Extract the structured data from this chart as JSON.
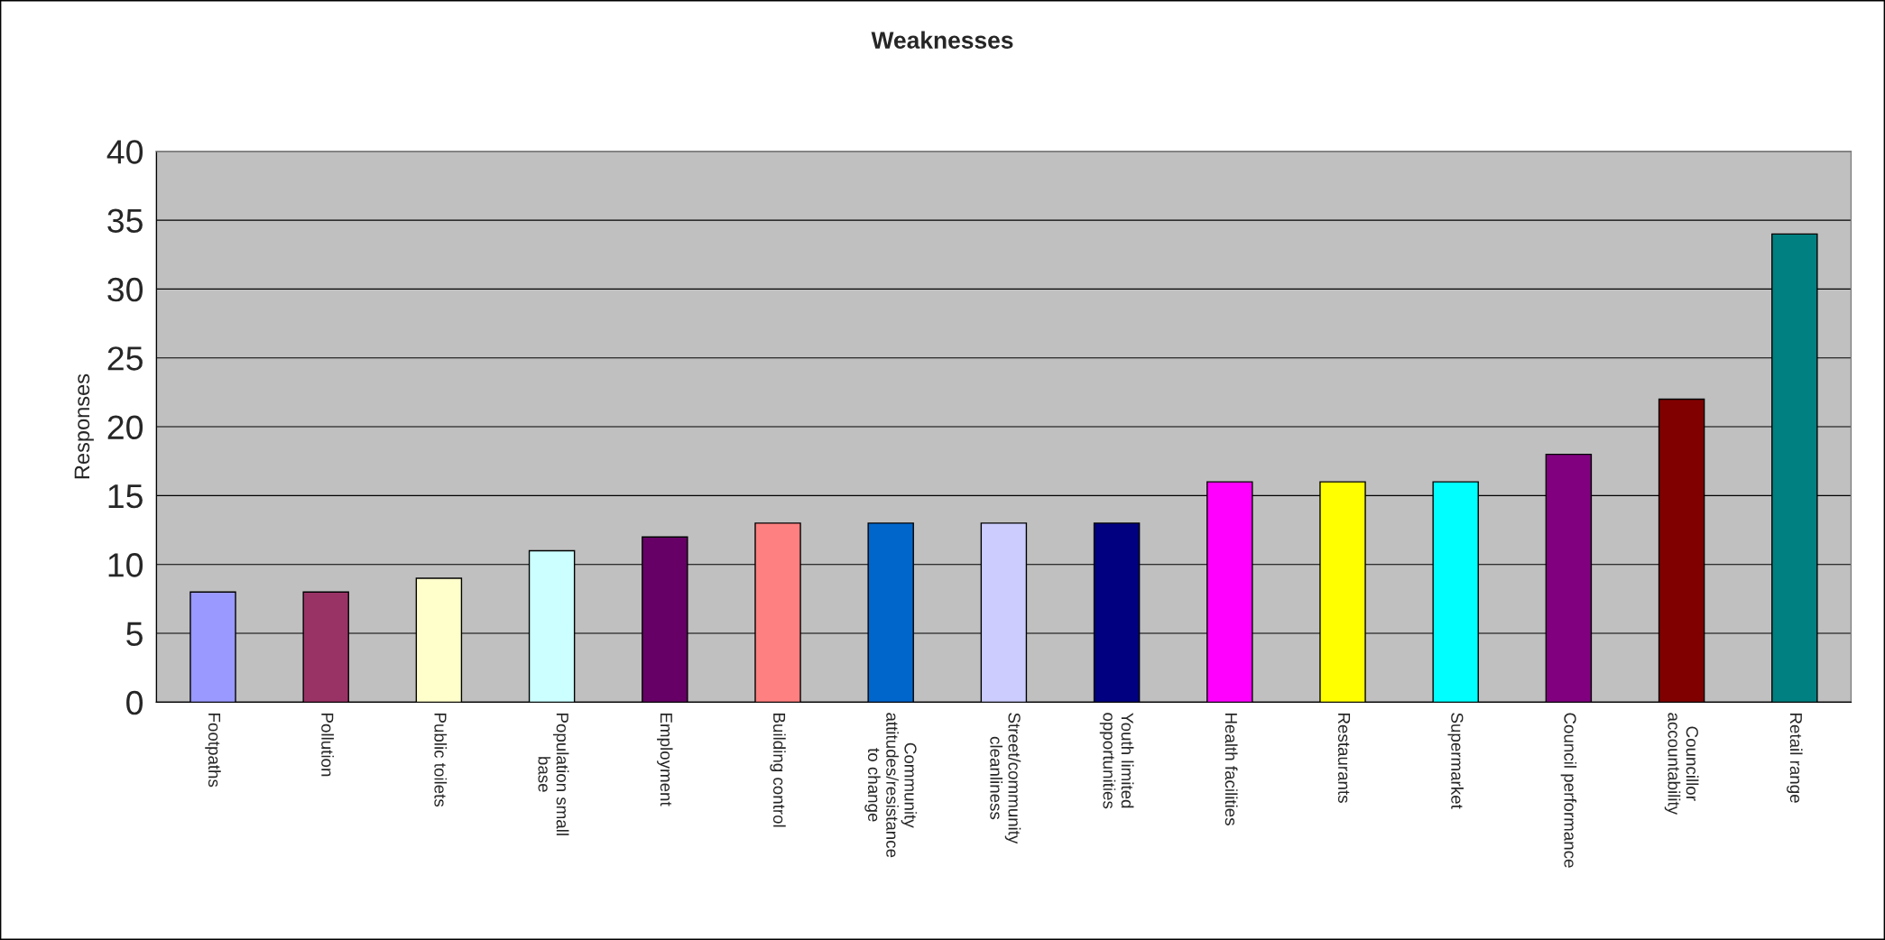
{
  "chart_data": {
    "type": "bar",
    "title": "Weaknesses",
    "ylabel": "Responses",
    "categories": [
      "Footpaths",
      "Pollution",
      "Public toilets",
      "Population small\nbase",
      "Employment",
      "Building control",
      "Community\nattitudes/resistance\nto change",
      "Street/community\ncleanliness",
      "Youth limited\nopportunities",
      "Health facilities",
      "Restaurants",
      "Supermarket",
      "Council performance",
      "Councillor\naccountability",
      "Retail range"
    ],
    "values": [
      8,
      8,
      9,
      11,
      12,
      13,
      13,
      13,
      13,
      16,
      16,
      16,
      18,
      22,
      34
    ],
    "colors": [
      "#9999ff",
      "#993366",
      "#ffffcc",
      "#ccffff",
      "#660066",
      "#ff8080",
      "#0066cc",
      "#ccccff",
      "#000080",
      "#ff00ff",
      "#ffff00",
      "#00ffff",
      "#800080",
      "#800000",
      "#008080"
    ],
    "ylim": [
      0,
      40
    ],
    "yticks": [
      0,
      5,
      10,
      15,
      20,
      25,
      30,
      35,
      40
    ],
    "grid": "y",
    "legend": false
  }
}
